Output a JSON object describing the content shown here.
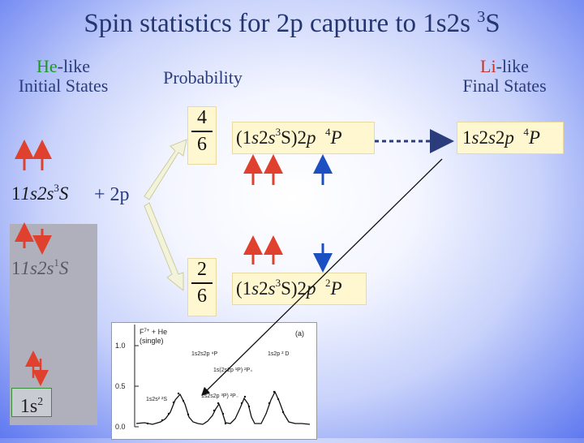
{
  "slide": {
    "title": "Spin statistics for 2p capture to 1s2s ",
    "title_superscript": "3",
    "title_tail": "S"
  },
  "left_heading": {
    "he": "He",
    "like": "-like",
    "line2": "Initial States"
  },
  "middle_heading": "Probability",
  "right_heading": {
    "li": "Li",
    "like": "-like",
    "line2": "Final States"
  },
  "initial_states": {
    "triplet": {
      "main": "1s2s",
      "sup": "3",
      "term": "S"
    },
    "plus": "+ 2p",
    "singlet": {
      "main": "1s2s",
      "sup": "1",
      "term": "S"
    },
    "ground": {
      "main": "1s",
      "sup": "2"
    }
  },
  "probabilities": {
    "quartet": {
      "numerator": "4",
      "denominator": "6"
    },
    "doublet": {
      "numerator": "2",
      "denominator": "6"
    }
  },
  "intermediate_states": {
    "quartet": {
      "open": "(1",
      "s1": "s",
      "two": "2",
      "s2": "s",
      "core_sup": "3",
      "core": "S)2",
      "p": "p",
      "sup": "4",
      "term": "P"
    },
    "doublet": {
      "open": "(1",
      "s1": "s",
      "two": "2",
      "s2": "s",
      "core_sup": "3",
      "core": "S)2",
      "p": "p",
      "sup": "2",
      "term": "P"
    }
  },
  "final_state": {
    "one": "1",
    "s1": "s",
    "two": "2",
    "s2": "s",
    "twop": "2",
    "p": "p",
    "sup": "4",
    "term": "P"
  },
  "chart": {
    "y_ticks": [
      "1.0",
      "0.5",
      "0.0"
    ],
    "legend_line1": "F",
    "legend_sup": "7+",
    "legend_tail": " + He",
    "legend_line2": "(single)",
    "panel_label": "(a)",
    "annotations": [
      "1s2s2p ⁴P",
      "1s2p ² D",
      "1s(2s2p ¹P) ²P₊",
      "1s2s2p ³P) ²P₋",
      "1s2s² ²S"
    ]
  },
  "colors": {
    "spin_up_red": "#e0402e",
    "spin_down_blue": "#1c4fc2",
    "spin_down_red": "#e0402e",
    "arrow_fill": "#f3f3da"
  }
}
